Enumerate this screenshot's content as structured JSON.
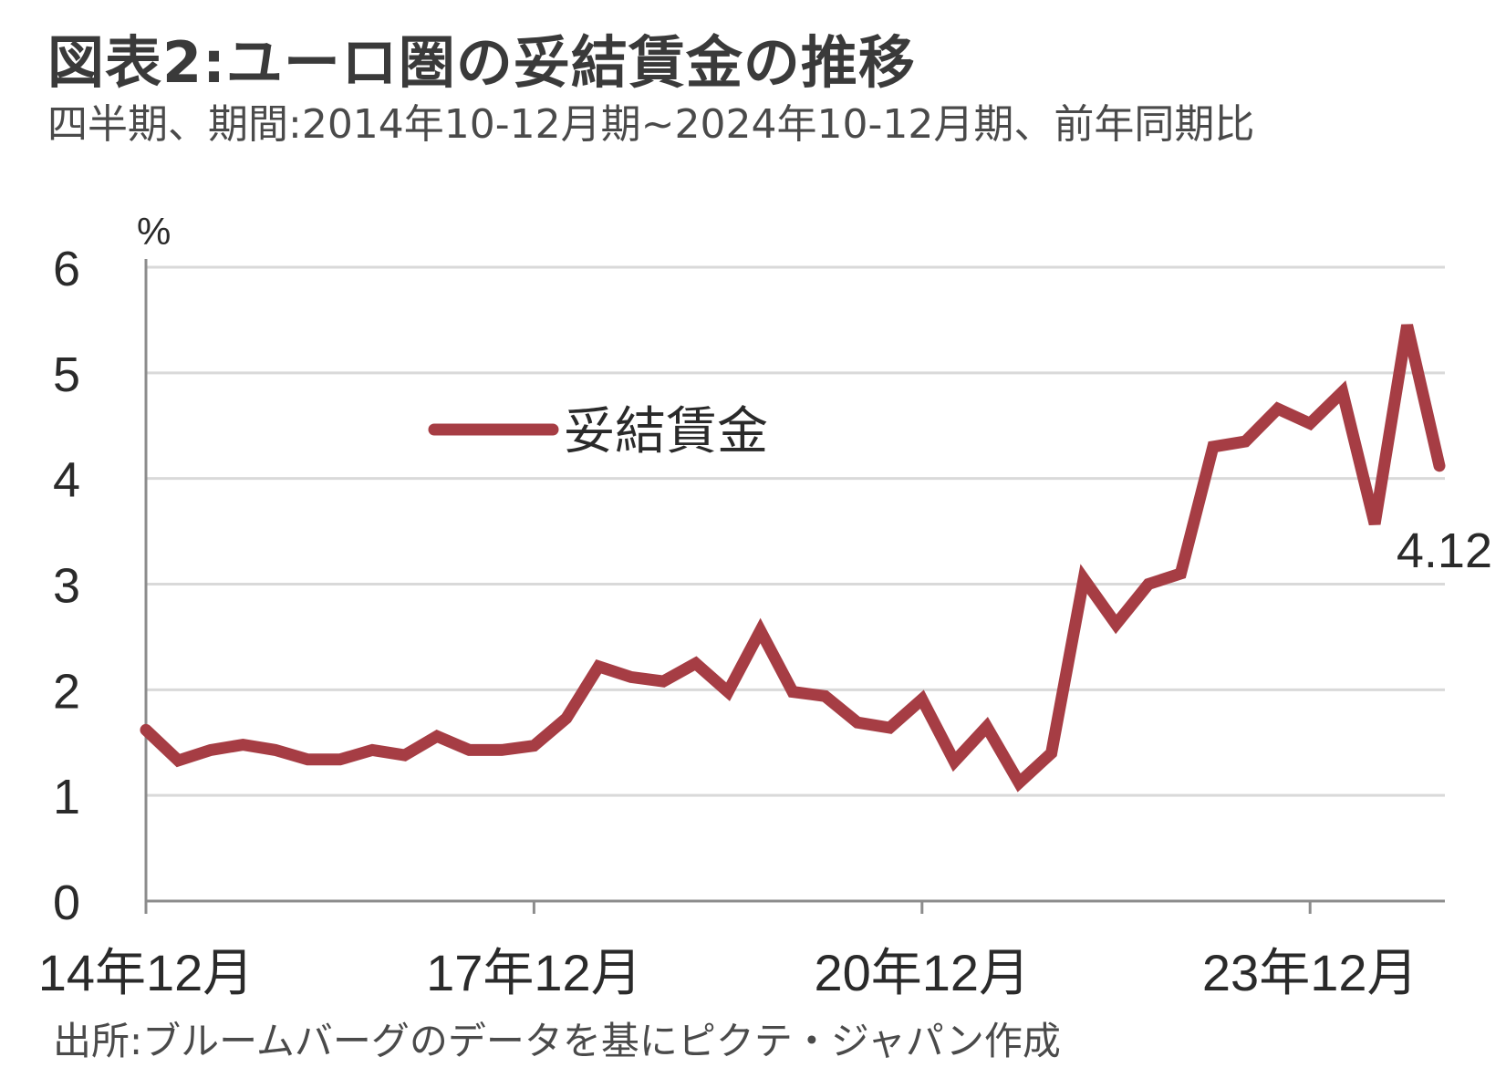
{
  "header": {
    "title": "図表2:ユーロ圏の妥結賃金の推移",
    "subtitle": "四半期、期間:2014年10-12月期~2024年10-12月期、前年同期比"
  },
  "footer": {
    "source": "出所:ブルームバーグのデータを基にピクテ・ジャパン作成"
  },
  "colors": {
    "series": "#a63d44",
    "grid": "#d9d9d9",
    "axis": "#8c8c8c"
  },
  "chart_data": {
    "type": "line",
    "ylabel": "%",
    "ylim": [
      0,
      6
    ],
    "yticks": [
      "0",
      "1",
      "2",
      "3",
      "4",
      "5",
      "6"
    ],
    "grid": true,
    "legend_position": "top-left",
    "x_ticks": [
      {
        "index": 0,
        "label": "14年12月"
      },
      {
        "index": 12,
        "label": "17年12月"
      },
      {
        "index": 24,
        "label": "20年12月"
      },
      {
        "index": 36,
        "label": "23年12月"
      }
    ],
    "series": [
      {
        "name": "妥結賃金",
        "values": [
          1.62,
          1.33,
          1.43,
          1.48,
          1.43,
          1.34,
          1.34,
          1.43,
          1.38,
          1.56,
          1.43,
          1.43,
          1.47,
          1.73,
          2.22,
          2.12,
          2.08,
          2.25,
          1.98,
          2.56,
          1.98,
          1.94,
          1.69,
          1.64,
          1.91,
          1.32,
          1.65,
          1.12,
          1.4,
          3.05,
          2.62,
          3.0,
          3.1,
          4.3,
          4.35,
          4.66,
          4.52,
          4.82,
          3.57,
          5.45,
          4.12
        ]
      }
    ],
    "annotations": [
      {
        "label": "4.12"
      }
    ]
  }
}
